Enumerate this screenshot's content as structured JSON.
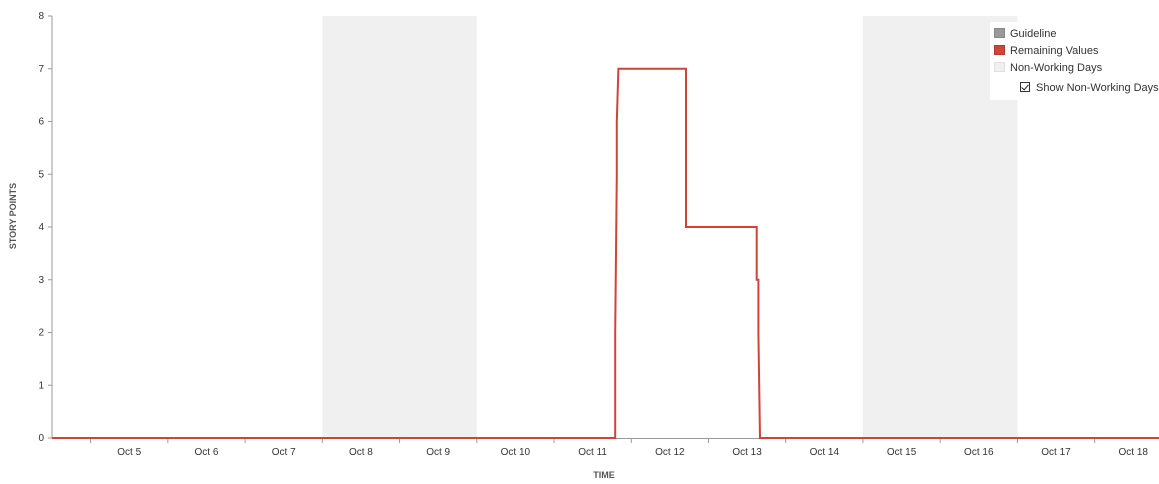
{
  "chart_data": {
    "type": "line",
    "ylabel": "STORY POINTS",
    "xlabel": "TIME",
    "ylim": [
      0,
      8
    ],
    "yticks": [
      0,
      1,
      2,
      3,
      4,
      5,
      6,
      7,
      8
    ],
    "xlim": [
      "Oct 4 12:00",
      "Oct 18 20:00"
    ],
    "x_tick_labels": [
      "Oct 5",
      "Oct 6",
      "Oct 7",
      "Oct 8",
      "Oct 9",
      "Oct 10",
      "Oct 11",
      "Oct 12",
      "Oct 13",
      "Oct 14",
      "Oct 15",
      "Oct 16",
      "Oct 17",
      "Oct 18"
    ],
    "non_working_days": [
      [
        "Oct 8",
        "Oct 10"
      ],
      [
        "Oct 15",
        "Oct 17"
      ]
    ],
    "series": [
      {
        "name": "Remaining Values",
        "color": "#d04437",
        "points": [
          [
            "Oct 4 12:00",
            0
          ],
          [
            "Oct 11 19:00",
            0
          ],
          [
            "Oct 11 19:00",
            2
          ],
          [
            "Oct 11 19:30",
            5
          ],
          [
            "Oct 11 19:30",
            6
          ],
          [
            "Oct 11 20:00",
            7
          ],
          [
            "Oct 12 17:00",
            7
          ],
          [
            "Oct 12 17:00",
            4
          ],
          [
            "Oct 13 15:00",
            4
          ],
          [
            "Oct 13 15:00",
            3
          ],
          [
            "Oct 13 15:30",
            3
          ],
          [
            "Oct 13 15:30",
            2
          ],
          [
            "Oct 13 16:00",
            0
          ],
          [
            "Oct 18 20:00",
            0
          ]
        ]
      }
    ],
    "grid": false,
    "legend_position": "top-right",
    "legend": {
      "guideline": {
        "label": "Guideline",
        "color": "#999999"
      },
      "remaining": {
        "label": "Remaining Values",
        "color": "#d04437"
      },
      "nonworking": {
        "label": "Non-Working Days",
        "color": "#f0f0f0"
      },
      "show_nonworking_label": "Show Non-Working Days",
      "show_nonworking_checked": true
    }
  }
}
